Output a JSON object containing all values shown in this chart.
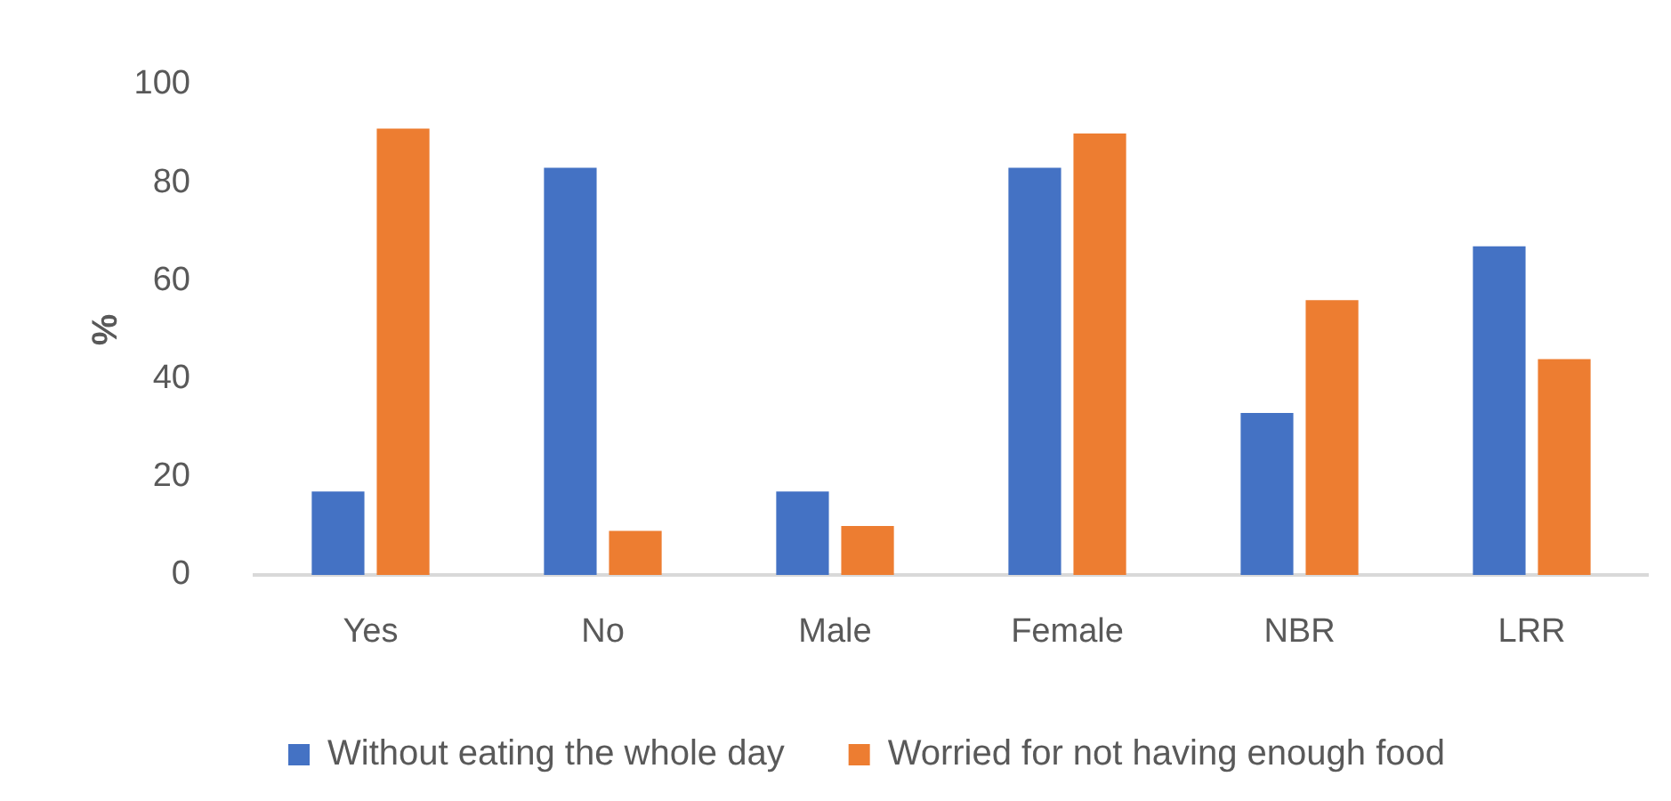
{
  "chart_data": {
    "type": "bar",
    "ylabel": "%",
    "categories": [
      "Yes",
      "No",
      "Male",
      "Female",
      "NBR",
      "LRR"
    ],
    "series": [
      {
        "name": "Without eating the whole day",
        "color": "#4472c4",
        "values": [
          17,
          83,
          17,
          83,
          33,
          67
        ]
      },
      {
        "name": "Worried for not having enough food",
        "color": "#ed7d31",
        "values": [
          91,
          9,
          10,
          90,
          56,
          44
        ]
      }
    ],
    "ylim": [
      0,
      100
    ],
    "yticks": [
      0,
      20,
      40,
      60,
      80,
      100
    ],
    "grid": false,
    "legend": "bottom"
  }
}
